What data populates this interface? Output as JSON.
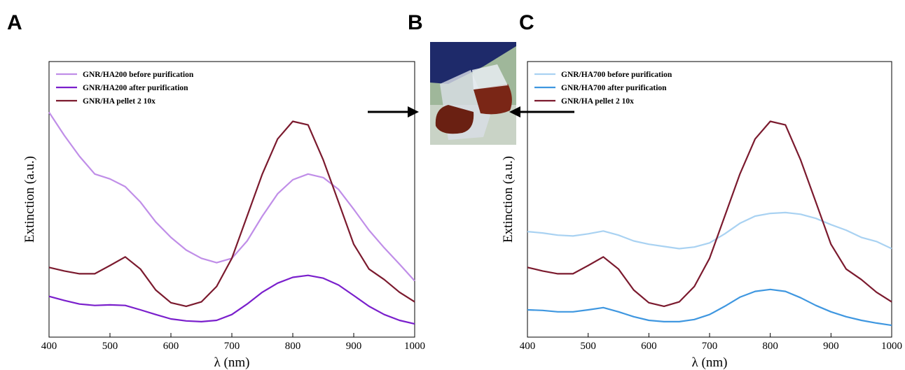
{
  "panel_labels": [
    "A",
    "B",
    "C"
  ],
  "chart_data": [
    {
      "type": "line",
      "x_label": "λ (nm)",
      "y_label": "Extinction (a.u.)",
      "legend": "upper left",
      "x": [
        400,
        425,
        450,
        475,
        500,
        525,
        550,
        575,
        600,
        625,
        650,
        675,
        700,
        725,
        750,
        775,
        800,
        825,
        850,
        875,
        900,
        925,
        950,
        975,
        1000
      ],
      "xlim": [
        400,
        1000
      ],
      "xticks": [
        400,
        500,
        600,
        700,
        800,
        900,
        1000
      ],
      "ylim": [
        0,
        1
      ],
      "series": [
        {
          "name": "GNR/HA200 before purification",
          "color": "#c08ee8",
          "values": [
            0.816,
            0.732,
            0.656,
            0.592,
            0.574,
            0.546,
            0.49,
            0.418,
            0.362,
            0.316,
            0.286,
            0.27,
            0.286,
            0.349,
            0.439,
            0.52,
            0.571,
            0.592,
            0.579,
            0.536,
            0.464,
            0.388,
            0.324,
            0.265,
            0.204
          ]
        },
        {
          "name": "GNR/HA200 after purification",
          "color": "#7a1fcc",
          "values": [
            0.148,
            0.133,
            0.12,
            0.115,
            0.117,
            0.115,
            0.099,
            0.082,
            0.066,
            0.059,
            0.056,
            0.061,
            0.082,
            0.12,
            0.163,
            0.196,
            0.217,
            0.224,
            0.214,
            0.189,
            0.151,
            0.112,
            0.082,
            0.061,
            0.048
          ]
        },
        {
          "name": "GNR/HA pellet 2 10x",
          "color": "#7b1a2e",
          "values": [
            0.253,
            0.24,
            0.23,
            0.23,
            0.26,
            0.291,
            0.247,
            0.171,
            0.125,
            0.112,
            0.128,
            0.184,
            0.286,
            0.439,
            0.592,
            0.719,
            0.783,
            0.77,
            0.643,
            0.49,
            0.337,
            0.247,
            0.209,
            0.163,
            0.128
          ]
        }
      ]
    },
    {
      "type": "line",
      "x_label": "λ (nm)",
      "y_label": "Extinction (a.u.)",
      "legend": "upper left",
      "x": [
        400,
        425,
        450,
        475,
        500,
        525,
        550,
        575,
        600,
        625,
        650,
        675,
        700,
        725,
        750,
        775,
        800,
        825,
        850,
        875,
        900,
        925,
        950,
        975,
        1000
      ],
      "xlim": [
        400,
        1000
      ],
      "xticks": [
        400,
        500,
        600,
        700,
        800,
        900,
        1000
      ],
      "ylim": [
        0,
        1
      ],
      "series": [
        {
          "name": "GNR/HA700 before purification",
          "color": "#a9d2f2",
          "values": [
            0.383,
            0.378,
            0.37,
            0.367,
            0.375,
            0.385,
            0.37,
            0.349,
            0.337,
            0.329,
            0.321,
            0.327,
            0.342,
            0.375,
            0.413,
            0.439,
            0.449,
            0.452,
            0.446,
            0.431,
            0.408,
            0.388,
            0.362,
            0.347,
            0.321
          ]
        },
        {
          "name": "GNR/HA700 after purification",
          "color": "#3f97e0",
          "values": [
            0.099,
            0.097,
            0.092,
            0.092,
            0.099,
            0.107,
            0.092,
            0.074,
            0.061,
            0.056,
            0.056,
            0.064,
            0.082,
            0.112,
            0.145,
            0.166,
            0.173,
            0.166,
            0.143,
            0.115,
            0.092,
            0.074,
            0.061,
            0.051,
            0.043
          ]
        },
        {
          "name": "GNR/HA pellet 2 10x",
          "color": "#7b1a2e",
          "values": [
            0.253,
            0.24,
            0.23,
            0.23,
            0.26,
            0.291,
            0.247,
            0.171,
            0.125,
            0.112,
            0.128,
            0.184,
            0.286,
            0.439,
            0.592,
            0.719,
            0.783,
            0.77,
            0.643,
            0.49,
            0.337,
            0.247,
            0.209,
            0.163,
            0.128
          ]
        }
      ]
    }
  ]
}
